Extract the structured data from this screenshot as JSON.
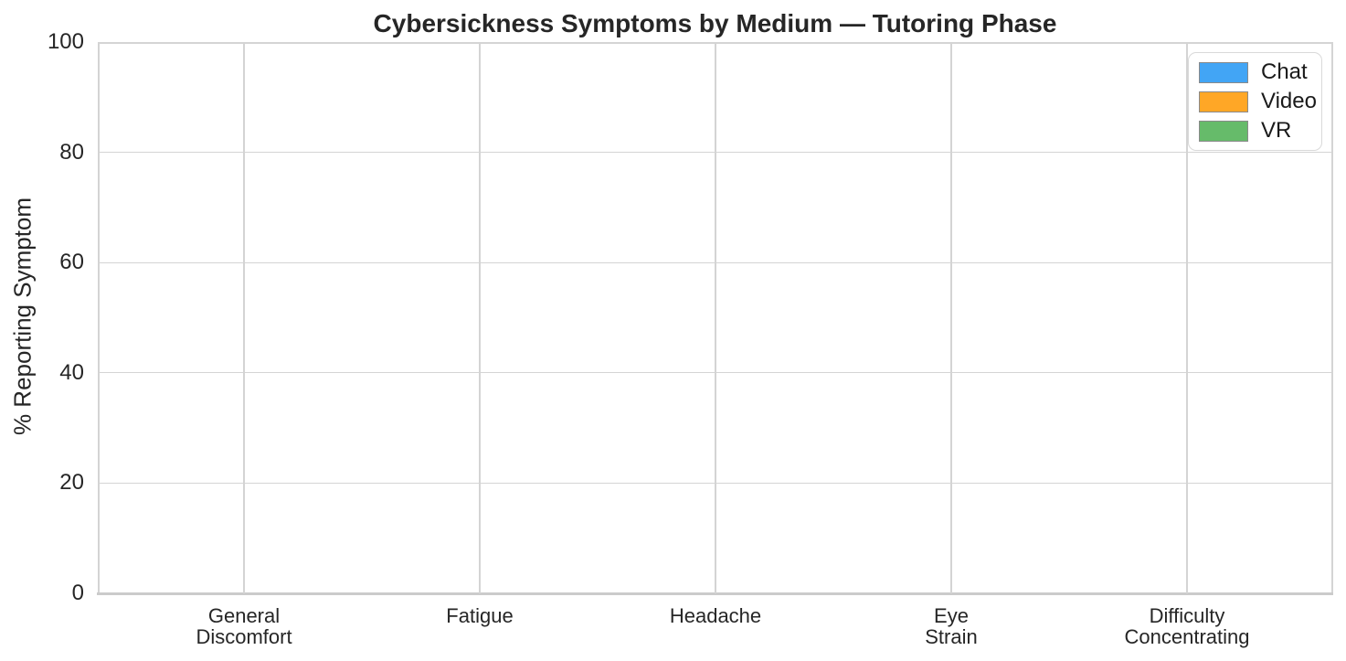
{
  "figure": {
    "background": "#ffffff"
  },
  "chart_data": {
    "type": "bar",
    "title": "Cybersickness Symptoms by Medium — Tutoring Phase",
    "xlabel": "",
    "ylabel": "% Reporting Symptom",
    "categories": [
      "General\nDiscomfort",
      "Fatigue",
      "Headache",
      "Eye\nStrain",
      "Difficulty\nConcentrating"
    ],
    "series": [
      {
        "name": "Chat",
        "color": "#42A5F5",
        "values": [
          0,
          0,
          0,
          0,
          0
        ]
      },
      {
        "name": "Video",
        "color": "#FFA726",
        "values": [
          0,
          0,
          0,
          0,
          0
        ]
      },
      {
        "name": "VR",
        "color": "#66BB6A",
        "values": [
          0,
          0,
          0,
          0,
          0
        ]
      }
    ],
    "ylim": [
      0,
      100
    ],
    "yticks": [
      0,
      20,
      40,
      60,
      80,
      100
    ],
    "grid": true,
    "legend": {
      "position": "upper right",
      "entries": [
        "Chat",
        "Video",
        "VR"
      ]
    },
    "colors": {
      "gridline": "#d4d4d4",
      "axis_text": "#262626",
      "swatch_edge": "#8a8a8a"
    }
  }
}
